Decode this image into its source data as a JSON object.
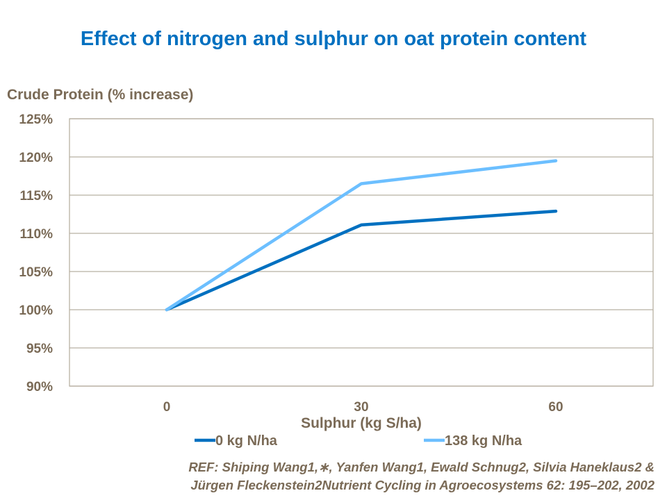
{
  "chart_data": {
    "type": "line",
    "title": "Effect of nitrogen and sulphur on oat protein content",
    "ylabel": "Crude Protein (% increase)",
    "xlabel": "Sulphur (kg S/ha)",
    "categories": [
      "0",
      "30",
      "60"
    ],
    "yticks": [
      "90%",
      "95%",
      "100%",
      "105%",
      "110%",
      "115%",
      "120%",
      "125%"
    ],
    "ylim": [
      90,
      125
    ],
    "grid": true,
    "legend_position": "bottom",
    "series": [
      {
        "name": "0 kg N/ha",
        "values": [
          100,
          111.1,
          112.9
        ],
        "color": "#0070c0"
      },
      {
        "name": "138 kg N/ha",
        "values": [
          100,
          116.5,
          119.5
        ],
        "color": "#6cbfff"
      }
    ]
  },
  "reference": {
    "line1": "REF: Shiping Wang1,∗, Yanfen Wang1, Ewald Schnug2, Silvia Haneklaus2 &",
    "line2": "Jürgen Fleckenstein2Nutrient Cycling in Agroecosystems 62: 195–202, 2002"
  }
}
